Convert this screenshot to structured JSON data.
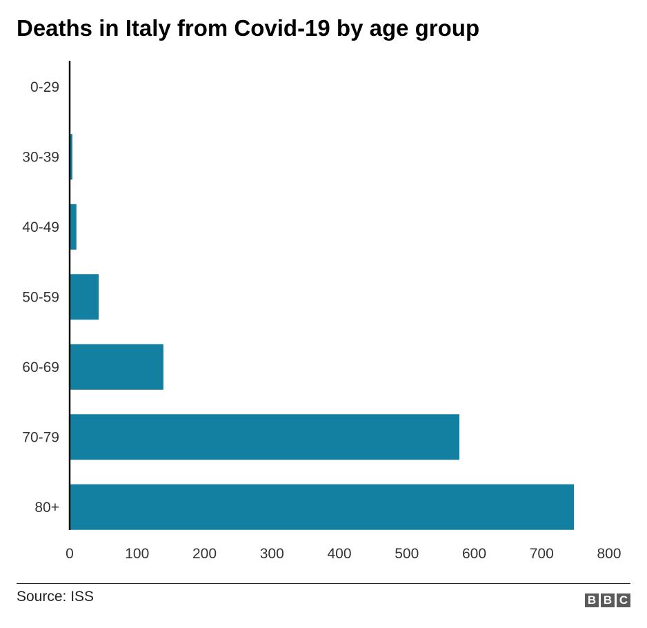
{
  "chart_data": {
    "type": "bar",
    "orientation": "horizontal",
    "title": "Deaths in Italy from Covid-19 by age group",
    "categories": [
      "0-29",
      "30-39",
      "40-49",
      "50-59",
      "60-69",
      "70-79",
      "80+"
    ],
    "values": [
      0,
      4,
      10,
      43,
      139,
      578,
      748
    ],
    "xlim": [
      0,
      800
    ],
    "xticks": [
      "0",
      "100",
      "200",
      "300",
      "400",
      "500",
      "600",
      "700",
      "800"
    ],
    "grid": false,
    "bar_color": "#1380a1"
  },
  "footer": {
    "source": "Source: ISS",
    "logo_letters": [
      "B",
      "B",
      "C"
    ],
    "logo_color": "#5a5a5a"
  }
}
